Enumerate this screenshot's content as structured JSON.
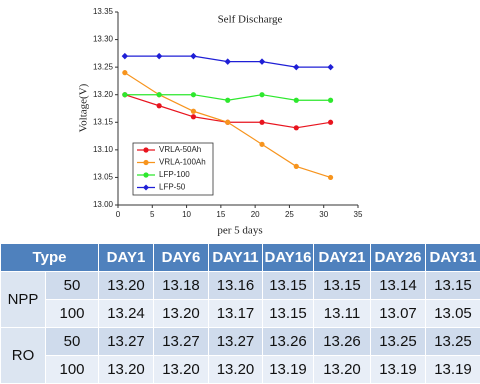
{
  "chart_data": {
    "type": "line",
    "title": "Self Discharge",
    "xlabel": "per 5 days",
    "ylabel": "Voltage(V)",
    "x": [
      1,
      6,
      11,
      16,
      21,
      26,
      31
    ],
    "series": [
      {
        "name": "VRLA-50Ah",
        "color": "#e8141e",
        "marker": "circle",
        "values": [
          13.2,
          13.18,
          13.16,
          13.15,
          13.15,
          13.14,
          13.15
        ]
      },
      {
        "name": "VRLA-100Ah",
        "color": "#f7941d",
        "marker": "circle",
        "values": [
          13.24,
          13.2,
          13.17,
          13.15,
          13.11,
          13.07,
          13.05
        ]
      },
      {
        "name": "LFP-100",
        "color": "#2de82d",
        "marker": "circle",
        "values": [
          13.2,
          13.2,
          13.2,
          13.19,
          13.2,
          13.19,
          13.19
        ]
      },
      {
        "name": "LFP-50",
        "color": "#1f1fd6",
        "marker": "diamond",
        "values": [
          13.27,
          13.27,
          13.27,
          13.26,
          13.26,
          13.25,
          13.25
        ]
      }
    ],
    "xlim": [
      0,
      35
    ],
    "xticks": [
      0,
      5,
      10,
      15,
      20,
      25,
      30,
      35
    ],
    "ylim": [
      13.0,
      13.35
    ],
    "yticks": [
      {
        "value": 13.0,
        "label": "13.00"
      },
      13.05,
      {
        "value": 13.1,
        "label": "13.10"
      },
      13.15,
      {
        "value": 13.2,
        "label": "13.20"
      },
      13.25,
      {
        "value": 13.3,
        "label": "13.30"
      },
      13.35
    ],
    "legend": "lower left"
  },
  "table": {
    "header": [
      "Type",
      "DAY1",
      "DAY6",
      "DAY11",
      "DAY16",
      "DAY21",
      "DAY26",
      "DAY31"
    ],
    "groups": [
      {
        "label": "NPP",
        "rows": [
          {
            "type": "50",
            "values": [
              "13.20",
              "13.18",
              "13.16",
              "13.15",
              "13.15",
              "13.14",
              "13.15"
            ]
          },
          {
            "type": "100",
            "values": [
              "13.24",
              "13.20",
              "13.17",
              "13.15",
              "13.11",
              "13.07",
              "13.05"
            ]
          }
        ]
      },
      {
        "label": "RO",
        "rows": [
          {
            "type": "50",
            "values": [
              "13.27",
              "13.27",
              "13.27",
              "13.26",
              "13.26",
              "13.25",
              "13.25"
            ]
          },
          {
            "type": "100",
            "values": [
              "13.20",
              "13.20",
              "13.20",
              "13.19",
              "13.20",
              "13.19",
              "13.19"
            ]
          }
        ]
      }
    ]
  }
}
